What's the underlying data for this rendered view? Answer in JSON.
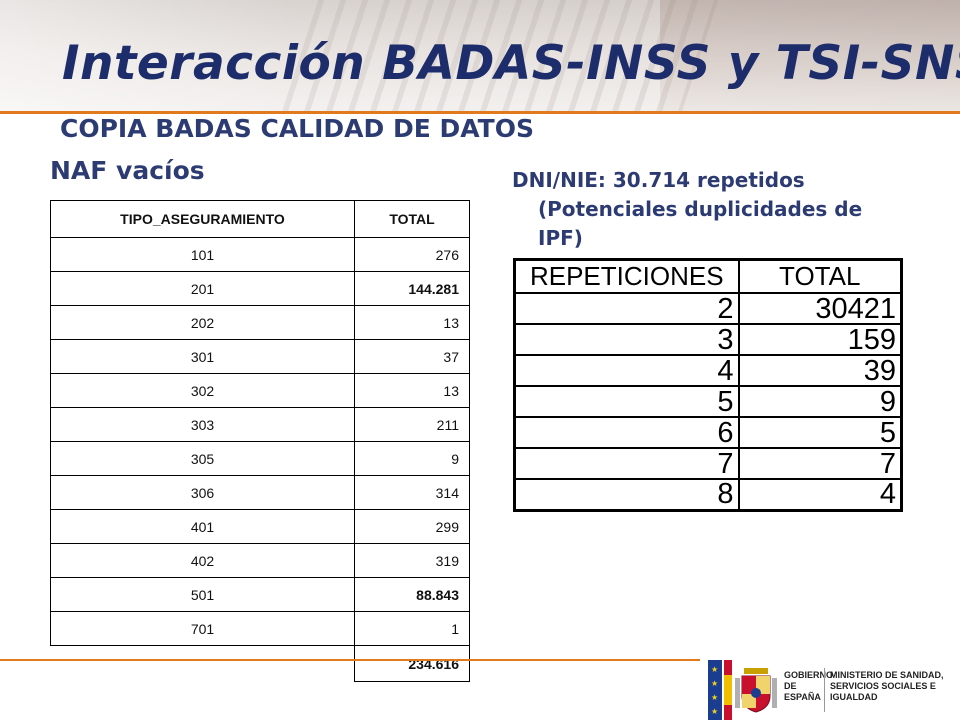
{
  "title": "Interacción BADAS-INSS y TSI-SNS",
  "subtitle": "COPIA BADAS CALIDAD DE DATOS",
  "left_heading": "NAF vacíos",
  "right_text": {
    "line1": "DNI/NIE: 30.714 repetidos",
    "line2": "(Potenciales duplicidades de",
    "line3": "IPF)"
  },
  "naf_table": {
    "headers": [
      "TIPO_ASEGURAMIENTO",
      "TOTAL"
    ],
    "rows": [
      {
        "tipo": "101",
        "total": "276"
      },
      {
        "tipo": "201",
        "total": "144.281"
      },
      {
        "tipo": "202",
        "total": "13"
      },
      {
        "tipo": "301",
        "total": "37"
      },
      {
        "tipo": "302",
        "total": "13"
      },
      {
        "tipo": "303",
        "total": "211"
      },
      {
        "tipo": "305",
        "total": "9"
      },
      {
        "tipo": "306",
        "total": "314"
      },
      {
        "tipo": "401",
        "total": "299"
      },
      {
        "tipo": "402",
        "total": "319"
      },
      {
        "tipo": "501",
        "total": "88.843"
      },
      {
        "tipo": "701",
        "total": "1"
      }
    ],
    "grand_total": "234.616"
  },
  "rep_table": {
    "headers": [
      "REPETICIONES",
      "TOTAL"
    ],
    "rows": [
      {
        "rep": "2",
        "total": "30421"
      },
      {
        "rep": "3",
        "total": "159"
      },
      {
        "rep": "4",
        "total": "39"
      },
      {
        "rep": "5",
        "total": "9"
      },
      {
        "rep": "6",
        "total": "5"
      },
      {
        "rep": "7",
        "total": "7"
      },
      {
        "rep": "8",
        "total": "4"
      }
    ]
  },
  "logo": {
    "gobierno": "GOBIERNO DE ESPAÑA",
    "ministerio": "MINISTERIO DE SANIDAD, SERVICIOS SOCIALES E IGUALDAD"
  },
  "colors": {
    "title": "#1d2c6a",
    "accent_line": "#e07a1c"
  }
}
